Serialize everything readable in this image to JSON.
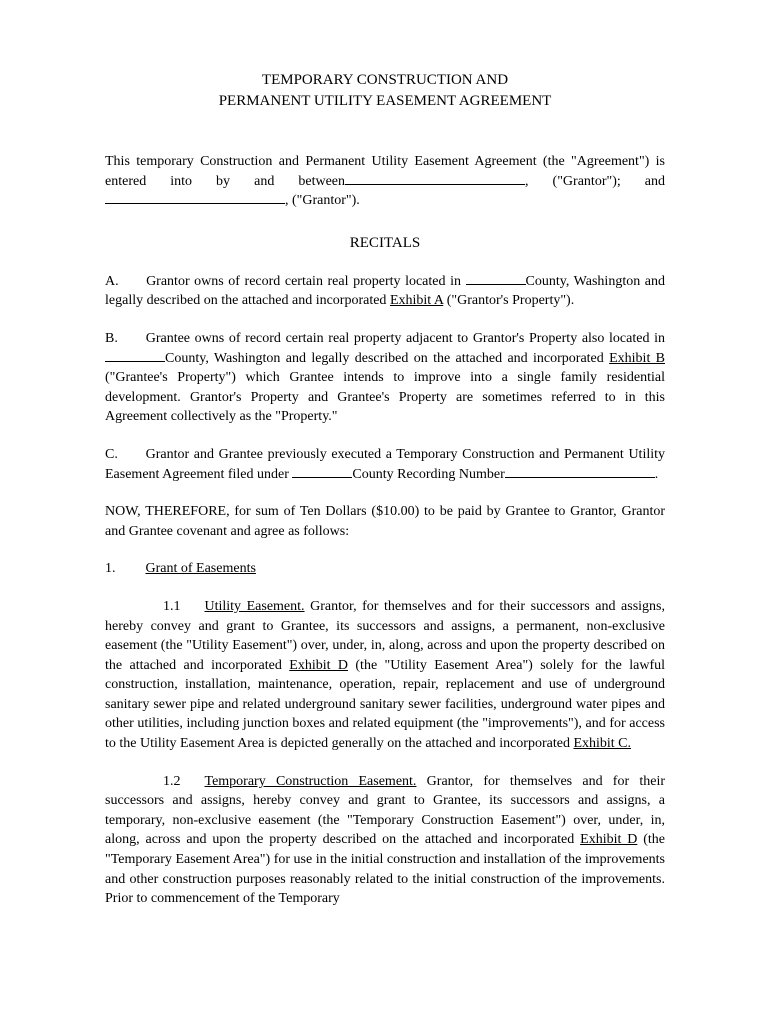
{
  "title": {
    "line1": "TEMPORARY CONSTRUCTION AND",
    "line2": "PERMANENT UTILITY EASEMENT AGREEMENT"
  },
  "intro": {
    "text1": "This temporary Construction and Permanent Utility Easement Agreement (the \"Agreement\") is entered into by and between",
    "text2": ", (\"Grantor\"); and",
    "text3": ", (\"Grantor\")."
  },
  "recitals": {
    "heading": "RECITALS",
    "a": {
      "label": "A.",
      "text1": "Grantor owns of record certain real property located in ",
      "text2": "County, Washington and legally described on the attached and incorporated ",
      "exhibit": "Exhibit A",
      "text3": " (\"Grantor's Property\")."
    },
    "b": {
      "label": "B.",
      "text1": "Grantee owns of record certain real property adjacent to Grantor's Property also located in ",
      "text2": "County, Washington and legally described on the attached and incorporated ",
      "exhibit": "Exhibit B ",
      "text3": "(\"Grantee's Property\") which Grantee intends to improve into a single family residential development.  Grantor's Property and Grantee's Property are sometimes referred to in this Agreement collectively as the \"Property.\""
    },
    "c": {
      "label": "C.",
      "text1": "Grantor and Grantee previously executed a Temporary Construction and Permanent Utility Easement Agreement filed under ",
      "text2": "County Recording Number",
      "text3": "."
    }
  },
  "nowTherefore": "NOW, THEREFORE, for sum of Ten Dollars ($10.00) to be paid by Grantee to Grantor, Grantor and Grantee covenant and agree as follows:",
  "section1": {
    "num": "1.",
    "title": "Grant of Easements"
  },
  "sub11": {
    "num": "1.1",
    "title": "Utility Easement.",
    "text1": "  Grantor, for themselves and for their successors and assigns, hereby convey and grant to Grantee, its successors and assigns, a permanent, non-exclusive easement (the \"Utility Easement\") over, under, in, along, across and upon the property described on the attached and incorporated ",
    "exhibitD": "Exhibit D",
    "text2": " (the \"Utility Easement Area\") solely for the lawful construction, installation, maintenance, operation, repair, replacement and use of underground sanitary sewer pipe and related underground sanitary sewer facilities, underground water pipes and other utilities, including junction boxes and related equipment (the \"improvements\"), and for access to the Utility Easement Area is depicted generally on the attached and incorporated ",
    "exhibitC": "Exhibit C."
  },
  "sub12": {
    "num": "1.2",
    "title": "Temporary Construction Easement.",
    "text1": "  Grantor, for themselves and for their successors and assigns, hereby convey and grant to Grantee, its successors and assigns, a temporary, non-exclusive easement (the \"Temporary Construction Easement\") over, under, in, along, across and upon the property described on the attached and incorporated ",
    "exhibitD": "Exhibit D",
    "text2": " (the \"Temporary Easement Area\") for use in the initial construction and installation of the improvements and other construction purposes reasonably related to the initial construction of the improvements.  Prior to commencement of the Temporary"
  }
}
